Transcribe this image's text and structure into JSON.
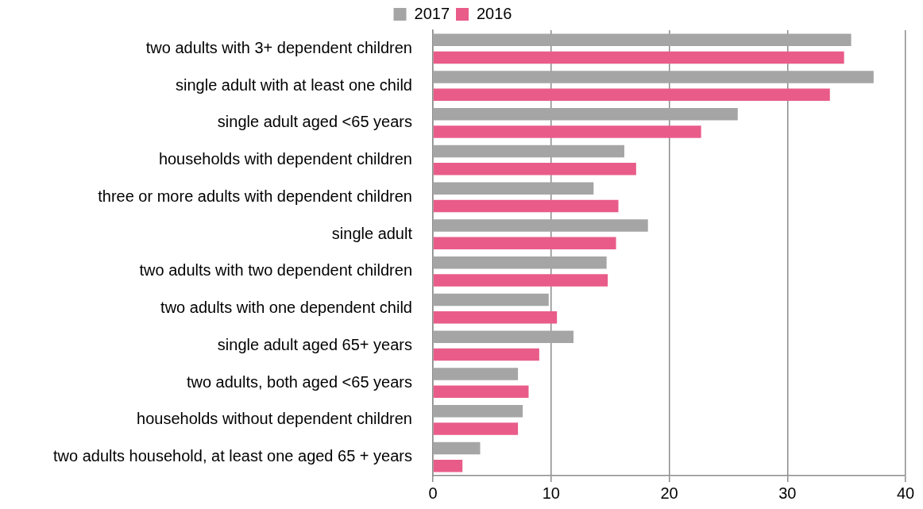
{
  "chart_data": {
    "type": "bar",
    "orientation": "horizontal",
    "categories": [
      "two adults with 3+ dependent children",
      "single adult with at least one child",
      "single adult aged <65 years",
      "households with dependent children",
      "three or more adults with dependent children",
      "single adult",
      "two adults with two dependent children",
      "two adults with one dependent child",
      "single adult aged 65+ years",
      "two adults, both aged <65 years",
      "households without dependent children",
      "two adults household, at least one aged 65 + years"
    ],
    "series": [
      {
        "name": "2017",
        "color": "#a5a5a5",
        "values": [
          35.4,
          37.3,
          25.8,
          16.2,
          13.6,
          18.2,
          14.7,
          9.8,
          11.9,
          7.2,
          7.6,
          4.0
        ]
      },
      {
        "name": "2016",
        "color": "#e95c8a",
        "values": [
          34.8,
          33.6,
          22.7,
          17.2,
          15.7,
          15.5,
          14.8,
          10.5,
          9.0,
          8.1,
          7.2,
          2.5
        ]
      }
    ],
    "xlim": [
      0,
      40
    ],
    "xticks": [
      0,
      10,
      20,
      30,
      40
    ],
    "grid": "x",
    "legend": "top"
  }
}
